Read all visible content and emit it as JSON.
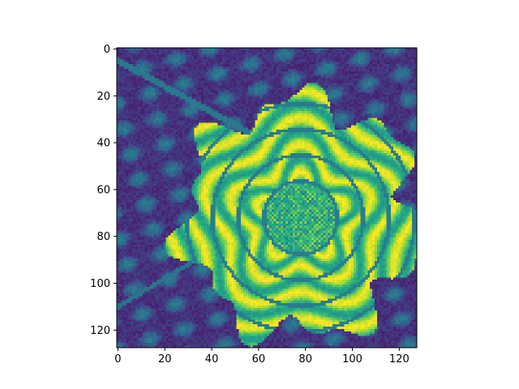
{
  "chart_data": {
    "type": "heatmap",
    "title": "",
    "xlabel": "",
    "ylabel": "",
    "colormap": "viridis",
    "image_shape": [
      128,
      128
    ],
    "xlim": [
      -0.5,
      127.5
    ],
    "ylim": [
      127.5,
      -0.5
    ],
    "x_ticks": [
      0,
      20,
      40,
      60,
      80,
      100,
      120
    ],
    "y_ticks": [
      0,
      20,
      40,
      60,
      80,
      100,
      120
    ],
    "grid": false,
    "legend": "none",
    "content": "grayscale photograph of a marigold flower rendered with the viridis colormap: bright yellow-green ruffled petals centred near column 78, row 72, surrounded by dark purple and teal foliage"
  },
  "colors": {
    "viridis_stops": [
      "#440154",
      "#482878",
      "#3e4989",
      "#31688e",
      "#26828e",
      "#1f9e89",
      "#35b779",
      "#6ece58",
      "#b5de2b",
      "#fde725"
    ],
    "axis": "#000000",
    "background": "#ffffff"
  }
}
